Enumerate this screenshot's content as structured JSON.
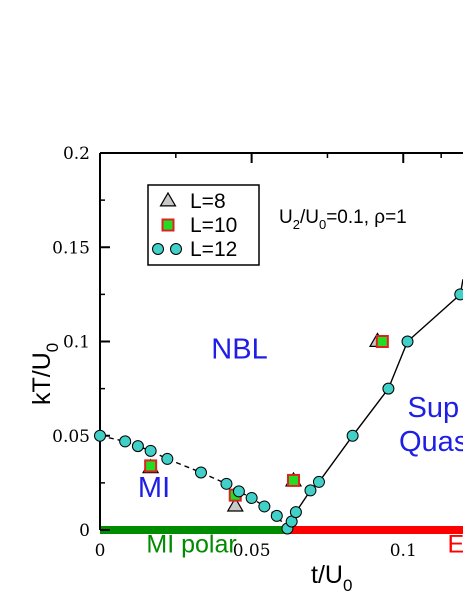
{
  "chart_data": {
    "type": "scatter",
    "xlabel": "t/U",
    "xlabel_sub": "0",
    "ylabel": "kT/U",
    "ylabel_sub": "0",
    "xlim": [
      0,
      0.1197
    ],
    "ylim": [
      0,
      0.2
    ],
    "x_ticks": [
      {
        "value": 0,
        "label": "0"
      },
      {
        "value": 0.05,
        "label": "0.05"
      },
      {
        "value": 0.1,
        "label": "0.1"
      }
    ],
    "y_ticks": [
      {
        "value": 0,
        "label": "0"
      },
      {
        "value": 0.05,
        "label": "0.05"
      },
      {
        "value": 0.1,
        "label": "0.1"
      },
      {
        "value": 0.15,
        "label": "0.15"
      },
      {
        "value": 0.2,
        "label": "0.2"
      }
    ],
    "params": {
      "pre": "U",
      "pre_sub": "2",
      "mid": "/U",
      "mid_sub": "0",
      "post": "=0.1, ρ=1"
    },
    "legend": {
      "placement": "top-left",
      "entries": [
        {
          "series": "L8",
          "label": "L=8"
        },
        {
          "series": "L10",
          "label": "L=10"
        },
        {
          "series": "L12",
          "label": "L=12"
        }
      ]
    },
    "series": [
      {
        "key": "L8",
        "name": "L=8",
        "marker": "triangle",
        "color": "#c8c8c8",
        "points": [
          [
            0.0167,
            0.033
          ],
          [
            0.0446,
            0.0127
          ],
          [
            0.0638,
            0.026
          ],
          [
            0.0915,
            0.1
          ]
        ]
      },
      {
        "key": "L10",
        "name": "L=10",
        "marker": "square",
        "color": "#22dd22",
        "points": [
          [
            0.0167,
            0.034
          ],
          [
            0.0446,
            0.0185
          ],
          [
            0.0638,
            0.0263
          ],
          [
            0.0931,
            0.1
          ]
        ]
      },
      {
        "key": "L12",
        "name": "L=12",
        "marker": "circle",
        "color": "#40d0c8",
        "points": [
          [
            0,
            0.05
          ],
          [
            0.0083,
            0.047
          ],
          [
            0.0125,
            0.0445
          ],
          [
            0.0167,
            0.042
          ],
          [
            0.0222,
            0.0377
          ],
          [
            0.0333,
            0.0305
          ],
          [
            0.0417,
            0.0245
          ],
          [
            0.0458,
            0.0205
          ],
          [
            0.05,
            0.017
          ],
          [
            0.0542,
            0.0125
          ],
          [
            0.0583,
            0.0075
          ],
          [
            0.0618,
            0.0008
          ],
          [
            0.0632,
            0.0045
          ],
          [
            0.0646,
            0.0095
          ],
          [
            0.0694,
            0.021
          ],
          [
            0.0722,
            0.0255
          ],
          [
            0.0833,
            0.05
          ],
          [
            0.0951,
            0.075
          ],
          [
            0.1014,
            0.1
          ],
          [
            0.1188,
            0.125
          ]
        ]
      }
    ],
    "boundaries": [
      {
        "style": "dashed",
        "points": [
          [
            0,
            0.05
          ],
          [
            0.0083,
            0.047
          ],
          [
            0.0125,
            0.0445
          ],
          [
            0.0167,
            0.042
          ],
          [
            0.0222,
            0.0377
          ],
          [
            0.0333,
            0.0305
          ],
          [
            0.0417,
            0.0245
          ],
          [
            0.0458,
            0.0205
          ],
          [
            0.05,
            0.017
          ],
          [
            0.0542,
            0.0125
          ],
          [
            0.0583,
            0.0075
          ],
          [
            0.0618,
            0.0008
          ]
        ]
      },
      {
        "style": "solid",
        "points": [
          [
            0.0618,
            0.0008
          ],
          [
            0.0632,
            0.0045
          ],
          [
            0.0646,
            0.0095
          ],
          [
            0.0694,
            0.021
          ],
          [
            0.0722,
            0.0255
          ],
          [
            0.0833,
            0.05
          ],
          [
            0.0951,
            0.075
          ],
          [
            0.1014,
            0.1
          ],
          [
            0.1188,
            0.125
          ],
          [
            0.1197,
            0.133
          ]
        ]
      }
    ],
    "axis_bars": [
      {
        "x0": 0,
        "x1": 0.0625,
        "color": "#008c00"
      },
      {
        "x0": 0.0625,
        "x1": 0.1197,
        "color": "#ff0000"
      }
    ],
    "regions": [
      {
        "key": "nbl",
        "text": "NBL",
        "x": 0.0367,
        "y": 0.091,
        "color": "#1e1ee6"
      },
      {
        "key": "mi",
        "text": "MI",
        "x": 0.0125,
        "y": 0.0175,
        "color": "#1e1ee6"
      },
      {
        "key": "sup",
        "text": "Sup",
        "x": 0.1014,
        "y": 0.06,
        "color": "#1e1ee6"
      },
      {
        "key": "quas",
        "text": "Quas",
        "x": 0.0986,
        "y": 0.042,
        "color": "#1e1ee6"
      },
      {
        "key": "mi-polar",
        "text": "MI polar",
        "x": 0.0153,
        "y": -0.012,
        "color": "#008c00"
      },
      {
        "key": "edge-e",
        "text": "E",
        "x": 0.1146,
        "y": -0.012,
        "color": "#ff0000"
      }
    ]
  }
}
